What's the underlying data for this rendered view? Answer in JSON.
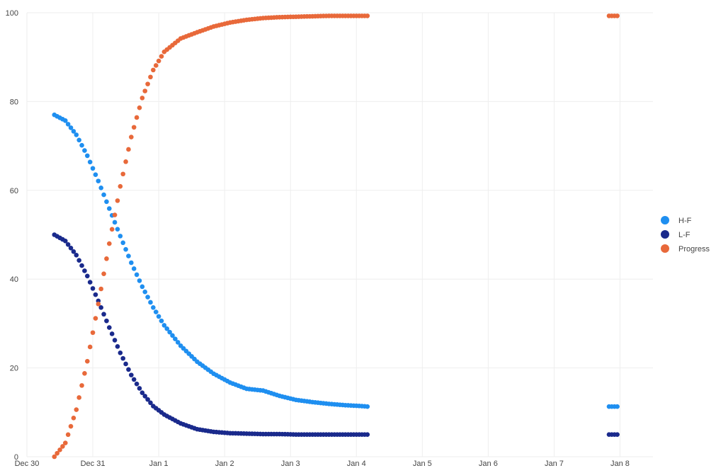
{
  "chart_data": {
    "type": "scatter",
    "title": "",
    "xlabel": "",
    "ylabel": "",
    "x_axis_type": "date",
    "x_ticks": [
      "Dec 30",
      "Dec 31",
      "Jan 1",
      "Jan 2",
      "Jan 3",
      "Jan 4",
      "Jan 5",
      "Jan 6",
      "Jan 7",
      "Jan 8"
    ],
    "x_range": [
      "Dec 30 00:00",
      "Jan 8 12:00"
    ],
    "y_ticks": [
      0,
      20,
      40,
      60,
      80,
      100
    ],
    "ylim": [
      0,
      100
    ],
    "grid": true,
    "legend_position": "right",
    "series": [
      {
        "name": "H-F",
        "color": "#1f8ff0",
        "points": [
          [
            "Dec 30 10:00",
            77.0
          ],
          [
            "Dec 30 14:00",
            75.7
          ],
          [
            "Dec 30 18:00",
            72.5
          ],
          [
            "Dec 30 22:00",
            67.8
          ],
          [
            "Dec 31 02:00",
            62.1
          ],
          [
            "Dec 31 06:00",
            55.9
          ],
          [
            "Dec 31 10:00",
            49.7
          ],
          [
            "Dec 31 14:00",
            43.7
          ],
          [
            "Dec 31 18:00",
            38.3
          ],
          [
            "Dec 31 22:00",
            33.6
          ],
          [
            "Jan 1 02:00",
            29.6
          ],
          [
            "Jan 1 08:00",
            25.0
          ],
          [
            "Jan 1 14:00",
            21.4
          ],
          [
            "Jan 1 20:00",
            18.7
          ],
          [
            "Jan 2 02:00",
            16.7
          ],
          [
            "Jan 2 08:00",
            15.3
          ],
          [
            "Jan 2 14:00",
            14.9
          ],
          [
            "Jan 2 20:00",
            13.7
          ],
          [
            "Jan 3 02:00",
            12.8
          ],
          [
            "Jan 3 08:00",
            12.3
          ],
          [
            "Jan 3 14:00",
            11.9
          ],
          [
            "Jan 3 20:00",
            11.6
          ],
          [
            "Jan 4 02:00",
            11.4
          ],
          [
            "Jan 4 04:00",
            11.3
          ],
          [
            "Jan 7 20:00",
            11.3
          ],
          [
            "Jan 7 23:00",
            11.3
          ]
        ]
      },
      {
        "name": "L-F",
        "color": "#1a2a8c",
        "points": [
          [
            "Dec 30 10:00",
            50.0
          ],
          [
            "Dec 30 14:00",
            48.6
          ],
          [
            "Dec 30 18:00",
            45.4
          ],
          [
            "Dec 30 22:00",
            40.7
          ],
          [
            "Dec 31 02:00",
            35.1
          ],
          [
            "Dec 31 06:00",
            29.1
          ],
          [
            "Dec 31 10:00",
            23.4
          ],
          [
            "Dec 31 14:00",
            18.4
          ],
          [
            "Dec 31 18:00",
            14.4
          ],
          [
            "Dec 31 22:00",
            11.4
          ],
          [
            "Jan 1 02:00",
            9.5
          ],
          [
            "Jan 1 08:00",
            7.5
          ],
          [
            "Jan 1 14:00",
            6.2
          ],
          [
            "Jan 1 20:00",
            5.6
          ],
          [
            "Jan 2 02:00",
            5.3
          ],
          [
            "Jan 2 08:00",
            5.2
          ],
          [
            "Jan 2 14:00",
            5.1
          ],
          [
            "Jan 2 20:00",
            5.1
          ],
          [
            "Jan 3 02:00",
            5.0
          ],
          [
            "Jan 3 08:00",
            5.0
          ],
          [
            "Jan 3 14:00",
            5.0
          ],
          [
            "Jan 3 20:00",
            5.0
          ],
          [
            "Jan 4 02:00",
            5.0
          ],
          [
            "Jan 4 04:00",
            5.0
          ],
          [
            "Jan 7 20:00",
            5.0
          ],
          [
            "Jan 7 23:00",
            5.0
          ]
        ]
      },
      {
        "name": "Progress",
        "color": "#e8693a",
        "points": [
          [
            "Dec 30 10:00",
            0.0
          ],
          [
            "Dec 30 14:00",
            3.1
          ],
          [
            "Dec 30 18:00",
            10.6
          ],
          [
            "Dec 30 22:00",
            21.5
          ],
          [
            "Dec 31 02:00",
            34.4
          ],
          [
            "Dec 31 06:00",
            48.0
          ],
          [
            "Dec 31 10:00",
            60.9
          ],
          [
            "Dec 31 14:00",
            72.0
          ],
          [
            "Dec 31 18:00",
            80.8
          ],
          [
            "Dec 31 22:00",
            87.1
          ],
          [
            "Jan 1 02:00",
            91.2
          ],
          [
            "Jan 1 08:00",
            94.2
          ],
          [
            "Jan 1 14:00",
            95.6
          ],
          [
            "Jan 1 20:00",
            96.9
          ],
          [
            "Jan 2 02:00",
            97.8
          ],
          [
            "Jan 2 08:00",
            98.4
          ],
          [
            "Jan 2 14:00",
            98.8
          ],
          [
            "Jan 2 20:00",
            99.0
          ],
          [
            "Jan 3 02:00",
            99.1
          ],
          [
            "Jan 3 08:00",
            99.2
          ],
          [
            "Jan 3 14:00",
            99.3
          ],
          [
            "Jan 3 20:00",
            99.3
          ],
          [
            "Jan 4 02:00",
            99.3
          ],
          [
            "Jan 4 04:00",
            99.3
          ],
          [
            "Jan 7 20:00",
            99.3
          ],
          [
            "Jan 7 23:00",
            99.3
          ]
        ]
      }
    ]
  }
}
